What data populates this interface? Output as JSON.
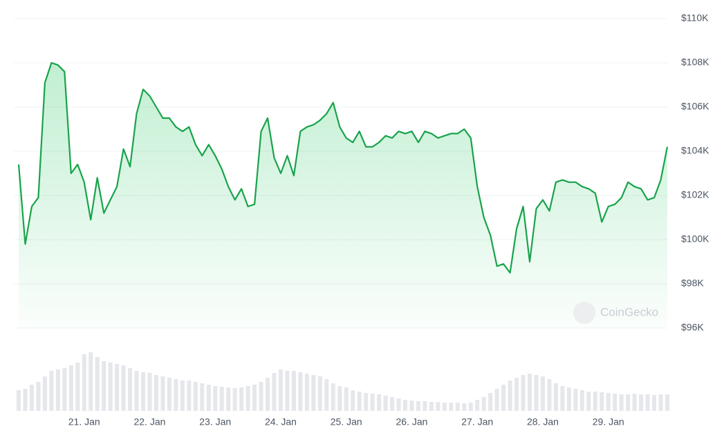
{
  "chart_data": {
    "type": "line",
    "watermark": "CoinGecko",
    "categories": [
      null,
      null,
      null,
      null,
      null,
      null,
      null,
      null,
      null,
      null,
      "21. Jan",
      null,
      null,
      null,
      null,
      null,
      null,
      null,
      null,
      null,
      "22. Jan",
      null,
      null,
      null,
      null,
      null,
      null,
      null,
      null,
      null,
      "23. Jan",
      null,
      null,
      null,
      null,
      null,
      null,
      null,
      null,
      null,
      "24. Jan",
      null,
      null,
      null,
      null,
      null,
      null,
      null,
      null,
      null,
      "25. Jan",
      null,
      null,
      null,
      null,
      null,
      null,
      null,
      null,
      null,
      "26. Jan",
      null,
      null,
      null,
      null,
      null,
      null,
      null,
      null,
      null,
      "27. Jan",
      null,
      null,
      null,
      null,
      null,
      null,
      null,
      null,
      null,
      "28. Jan",
      null,
      null,
      null,
      null,
      null,
      null,
      null,
      null,
      null,
      "29. Jan",
      null,
      null,
      null,
      null,
      null,
      null,
      null,
      null,
      null
    ],
    "series": [
      {
        "color": "#17a34a",
        "values": [
          103400,
          99800,
          101500,
          101900,
          107100,
          108000,
          107900,
          107600,
          103000,
          103400,
          102600,
          100900,
          102800,
          101200,
          101800,
          102400,
          104100,
          103300,
          105700,
          106800,
          106500,
          106000,
          105500,
          105500,
          105100,
          104900,
          105100,
          104300,
          103800,
          104300,
          103800,
          103200,
          102400,
          101800,
          102300,
          101500,
          101600,
          104900,
          105500,
          103700,
          103000,
          103800,
          102900,
          104900,
          105100,
          105200,
          105400,
          105700,
          106200,
          105100,
          104600,
          104400,
          104900,
          104200,
          104200,
          104400,
          104700,
          104600,
          104900,
          104800,
          104900,
          104400,
          104900,
          104800,
          104600,
          104700,
          104800,
          104800,
          105000,
          104600,
          102400,
          101000,
          100200,
          98800,
          98900,
          98500,
          100500,
          101500,
          99000,
          101400,
          101800,
          101300,
          102600,
          102700,
          102600,
          102600,
          102400,
          102300,
          102100,
          100800,
          101500,
          101600,
          101900,
          102600,
          102400,
          102300,
          101800,
          101900,
          102700,
          104200
        ]
      }
    ],
    "volume": {
      "color": "#e5e7eb",
      "values": [
        30,
        32,
        38,
        42,
        50,
        58,
        60,
        62,
        66,
        70,
        82,
        85,
        78,
        72,
        70,
        68,
        66,
        62,
        58,
        56,
        55,
        52,
        50,
        48,
        46,
        44,
        44,
        42,
        40,
        38,
        36,
        35,
        34,
        33,
        34,
        36,
        38,
        42,
        48,
        55,
        60,
        58,
        58,
        56,
        54,
        52,
        50,
        46,
        40,
        36,
        34,
        30,
        28,
        26,
        25,
        24,
        22,
        20,
        18,
        16,
        15,
        14,
        14,
        13,
        13,
        12,
        12,
        12,
        11,
        12,
        16,
        20,
        26,
        32,
        38,
        44,
        48,
        52,
        54,
        52,
        50,
        46,
        40,
        36,
        34,
        32,
        30,
        28,
        28,
        27,
        26,
        25,
        24,
        24,
        25,
        24,
        24,
        23,
        24,
        24
      ]
    },
    "ylim": [
      96000,
      110000
    ],
    "yticks": [
      {
        "value": 96000,
        "label": "$96K"
      },
      {
        "value": 98000,
        "label": "$98K"
      },
      {
        "value": 100000,
        "label": "$100K"
      },
      {
        "value": 102000,
        "label": "$102K"
      },
      {
        "value": 104000,
        "label": "$104K"
      },
      {
        "value": 106000,
        "label": "$106K"
      },
      {
        "value": 108000,
        "label": "$108K"
      },
      {
        "value": 110000,
        "label": "$110K"
      }
    ],
    "grid": true
  }
}
